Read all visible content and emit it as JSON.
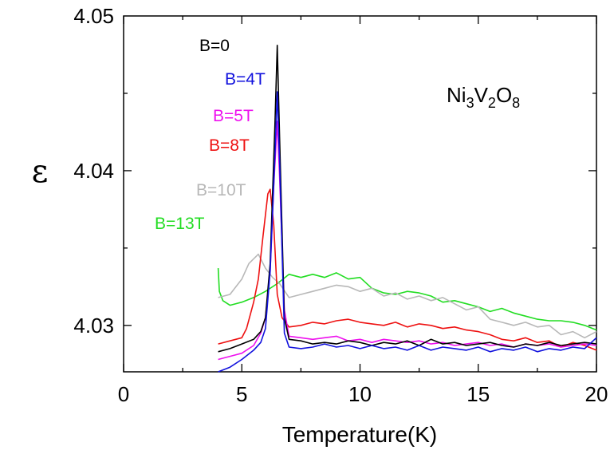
{
  "chart_data": {
    "type": "line",
    "title": "",
    "xlabel": "Temperature(K)",
    "ylabel": "ε",
    "xlim": [
      0,
      20
    ],
    "ylim": [
      4.027,
      4.05
    ],
    "x_ticks": [
      "0",
      "5",
      "10",
      "15",
      "20"
    ],
    "y_ticks": [
      "4.03",
      "4.04",
      "4.05"
    ],
    "annotation": {
      "base": [
        "Ni",
        "V",
        "O"
      ],
      "subs": [
        "3",
        "2",
        "8"
      ]
    },
    "grid": false,
    "legend": "inline labels",
    "series": [
      {
        "name": "B=13T",
        "color": "#22dd22",
        "x": [
          4.0,
          4.05,
          4.2,
          4.5,
          5.0,
          5.5,
          6.0,
          6.5,
          7.0,
          7.5,
          8.0,
          8.5,
          9.0,
          9.5,
          10.0,
          10.5,
          11.0,
          11.5,
          12.0,
          12.5,
          13.0,
          13.5,
          14.0,
          14.5,
          15.0,
          15.5,
          16.0,
          16.5,
          17.0,
          17.5,
          18.0,
          18.5,
          19.0,
          19.5,
          20.0
        ],
        "y": [
          4.0337,
          4.0322,
          4.0316,
          4.0313,
          4.0315,
          4.0318,
          4.0322,
          4.0327,
          4.0333,
          4.0331,
          4.0333,
          4.0331,
          4.0334,
          4.033,
          4.0331,
          4.0324,
          4.0321,
          4.032,
          4.0322,
          4.0321,
          4.0319,
          4.0315,
          4.0316,
          4.0314,
          4.0312,
          4.0309,
          4.0311,
          4.0308,
          4.0306,
          4.0304,
          4.0303,
          4.0303,
          4.0302,
          4.03,
          4.0297
        ]
      },
      {
        "name": "B=10T",
        "color": "#b8b8b8",
        "x": [
          4.0,
          4.5,
          5.0,
          5.3,
          5.7,
          6.0,
          6.3,
          6.6,
          7.0,
          7.5,
          8.0,
          8.5,
          9.0,
          9.5,
          10.0,
          10.5,
          11.0,
          11.5,
          12.0,
          12.5,
          13.0,
          13.5,
          14.0,
          14.5,
          15.0,
          15.5,
          16.0,
          16.5,
          17.0,
          17.5,
          18.0,
          18.5,
          19.0,
          19.5,
          20.0
        ],
        "y": [
          4.0318,
          4.032,
          4.033,
          4.034,
          4.0346,
          4.0337,
          4.0331,
          4.0327,
          4.0318,
          4.032,
          4.0322,
          4.0324,
          4.0326,
          4.0325,
          4.0322,
          4.0324,
          4.0319,
          4.0321,
          4.0317,
          4.0319,
          4.0316,
          4.0318,
          4.0314,
          4.031,
          4.0312,
          4.0304,
          4.0302,
          4.03,
          4.0302,
          4.0299,
          4.03,
          4.0294,
          4.0296,
          4.0292,
          4.0296
        ]
      },
      {
        "name": "B=8T",
        "color": "#ee1111",
        "x": [
          4.0,
          4.5,
          5.0,
          5.2,
          5.5,
          5.7,
          5.9,
          6.1,
          6.2,
          6.35,
          6.5,
          6.7,
          7.0,
          7.5,
          8.0,
          8.5,
          9.0,
          9.5,
          10.0,
          10.5,
          11.0,
          11.5,
          12.0,
          12.5,
          13.0,
          13.5,
          14.0,
          14.5,
          15.0,
          15.5,
          16.0,
          16.5,
          17.0,
          17.5,
          18.0,
          18.5,
          19.0,
          19.5,
          20.0
        ],
        "y": [
          4.0288,
          4.029,
          4.0292,
          4.0298,
          4.0315,
          4.033,
          4.0358,
          4.0385,
          4.0388,
          4.0365,
          4.032,
          4.0305,
          4.0299,
          4.03,
          4.0302,
          4.0301,
          4.0303,
          4.0304,
          4.0302,
          4.0301,
          4.03,
          4.0302,
          4.0299,
          4.0301,
          4.03,
          4.0298,
          4.0299,
          4.0297,
          4.0296,
          4.0294,
          4.0291,
          4.029,
          4.0292,
          4.0289,
          4.029,
          4.0286,
          4.0289,
          4.0287,
          4.0284
        ]
      },
      {
        "name": "B=5T",
        "color": "#ee11ee",
        "x": [
          4.0,
          4.5,
          5.0,
          5.5,
          5.8,
          6.0,
          6.2,
          6.35,
          6.5,
          6.6,
          6.8,
          7.0,
          7.5,
          8.0,
          8.5,
          9.0,
          9.5,
          10.0,
          10.5,
          11.0,
          11.5,
          12.0,
          12.5,
          13.0,
          13.5,
          14.0,
          14.5,
          15.0,
          15.5,
          16.0,
          16.5,
          17.0,
          17.5,
          18.0,
          18.5,
          19.0,
          19.5,
          20.0
        ],
        "y": [
          4.0278,
          4.028,
          4.0282,
          4.0287,
          4.0295,
          4.0305,
          4.0335,
          4.039,
          4.0432,
          4.0395,
          4.031,
          4.0293,
          4.0292,
          4.0291,
          4.0292,
          4.0293,
          4.029,
          4.0291,
          4.0289,
          4.0291,
          4.029,
          4.0289,
          4.029,
          4.0288,
          4.0289,
          4.0287,
          4.0288,
          4.0289,
          4.0287,
          4.0288,
          4.0286,
          4.0288,
          4.0287,
          4.0288,
          4.0286,
          4.0287,
          4.0288,
          4.0287
        ]
      },
      {
        "name": "B=0",
        "color": "#000000",
        "x": [
          4.0,
          4.5,
          5.0,
          5.5,
          5.8,
          6.0,
          6.2,
          6.4,
          6.5,
          6.6,
          6.8,
          7.0,
          7.5,
          8.0,
          8.5,
          9.0,
          9.5,
          10.0,
          10.5,
          11.0,
          11.5,
          12.0,
          12.5,
          13.0,
          13.5,
          14.0,
          14.5,
          15.0,
          15.5,
          16.0,
          16.5,
          17.0,
          17.5,
          18.0,
          18.5,
          19.0,
          19.5,
          20.0
        ],
        "y": [
          4.0283,
          4.0285,
          4.0288,
          4.0291,
          4.0296,
          4.0305,
          4.034,
          4.043,
          4.0481,
          4.042,
          4.0305,
          4.0291,
          4.029,
          4.0288,
          4.0289,
          4.0288,
          4.029,
          4.0289,
          4.0287,
          4.0289,
          4.0288,
          4.029,
          4.0287,
          4.0291,
          4.0288,
          4.0289,
          4.0287,
          4.0288,
          4.0289,
          4.0287,
          4.0286,
          4.0288,
          4.0287,
          4.0289,
          4.0287,
          4.0288,
          4.0289,
          4.0288
        ]
      },
      {
        "name": "B=4T",
        "color": "#1111dd",
        "x": [
          4.0,
          4.5,
          5.0,
          5.5,
          5.8,
          6.0,
          6.2,
          6.4,
          6.5,
          6.6,
          6.8,
          7.0,
          7.5,
          8.0,
          8.5,
          9.0,
          9.5,
          10.0,
          10.5,
          11.0,
          11.5,
          12.0,
          12.5,
          13.0,
          13.5,
          14.0,
          14.5,
          15.0,
          15.5,
          16.0,
          16.5,
          17.0,
          17.5,
          18.0,
          18.5,
          19.0,
          19.5,
          20.0
        ],
        "y": [
          4.027,
          4.0273,
          4.0278,
          4.0284,
          4.0289,
          4.0298,
          4.0335,
          4.041,
          4.0451,
          4.0405,
          4.0295,
          4.0286,
          4.0285,
          4.0286,
          4.0288,
          4.0286,
          4.0287,
          4.0285,
          4.0287,
          4.0285,
          4.0286,
          4.0284,
          4.0287,
          4.0284,
          4.0286,
          4.0285,
          4.0284,
          4.0286,
          4.0283,
          4.0285,
          4.0284,
          4.0286,
          4.0283,
          4.0285,
          4.0284,
          4.0286,
          4.0285,
          4.0292
        ]
      }
    ]
  }
}
